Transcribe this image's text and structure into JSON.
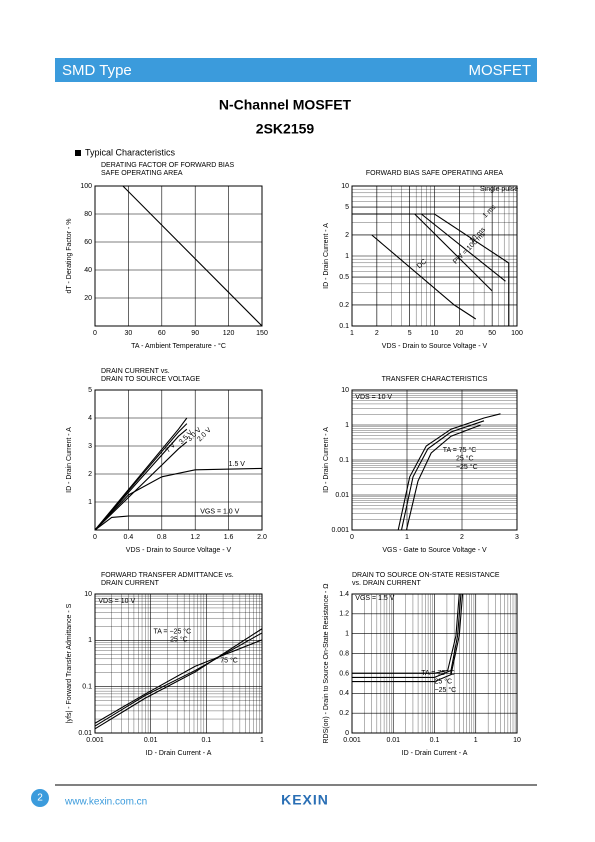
{
  "header": {
    "left": "SMD Type",
    "right": "MOSFET"
  },
  "title": "N-Channel MOSFET",
  "part": "2SK2159",
  "section": "Typical  Characteristics",
  "charts": [
    {
      "title": [
        "DERATING FACTOR OF FORWARD BIAS",
        "SAFE OPERATING AREA"
      ],
      "xlabel": "TA - Ambient Temperature - °C",
      "ylabel": "dT - Derating Factor - %",
      "xlim": [
        0,
        150
      ],
      "ylim": [
        0,
        100
      ],
      "xlog": false,
      "ylog": false,
      "xticks": [
        0,
        30,
        60,
        90,
        120,
        150
      ],
      "yticks": [
        20,
        40,
        60,
        80,
        100
      ],
      "annotations": []
    },
    {
      "title": [
        "FORWARD BIAS SAFE OPERATING AREA"
      ],
      "xlabel": "VDS - Drain to Source Voltage - V",
      "ylabel": "ID - Drain Current - A",
      "xlim": [
        1,
        100
      ],
      "ylim": [
        0.1,
        10
      ],
      "xlog": true,
      "ylog": true,
      "xticks": [
        1,
        2,
        5,
        10,
        20,
        50,
        100
      ],
      "yticks": [
        0.1,
        0.2,
        0.5,
        1,
        2,
        5,
        10
      ],
      "annotations": [
        "Single pulse",
        "1 ms",
        "10 ms",
        "PW = 100 ms",
        "DC"
      ]
    },
    {
      "title": [
        "DRAIN CURRENT vs.",
        "DRAIN TO SOURCE VOLTAGE"
      ],
      "xlabel": "VDS - Drain to Source Voltage - V",
      "ylabel": "ID - Drain Current - A",
      "xlim": [
        0,
        2
      ],
      "ylim": [
        0,
        5
      ],
      "xlog": false,
      "ylog": false,
      "xticks": [
        0,
        0.4,
        0.8,
        1.2,
        1.6,
        {
          "value": 2,
          "label": "2.0"
        }
      ],
      "yticks": [
        1,
        2,
        3,
        4,
        5
      ],
      "annotations": [
        "7 V",
        "3.5 V",
        "3.0 V",
        "2.0 V",
        "1.5 V",
        "VGS = 1.0 V"
      ]
    },
    {
      "title": [
        "TRANSFER CHARACTERISTICS"
      ],
      "xlabel": "VGS - Gate to Source Voltage - V",
      "ylabel": "ID - Drain Current - A",
      "xlim": [
        0,
        3
      ],
      "ylim": [
        0.001,
        10
      ],
      "xlog": false,
      "ylog": true,
      "xticks": [
        0,
        1,
        2,
        3
      ],
      "yticks": [
        0.001,
        0.01,
        0.1,
        1,
        10
      ],
      "annotations": [
        "VDS = 10 V",
        "TA = 75 °C",
        "25 °C",
        "−25 °C"
      ]
    },
    {
      "title": [
        "FORWARD TRANSFER ADMITTANCE vs.",
        "DRAIN CURRENT"
      ],
      "xlabel": "ID - Drain Current - A",
      "ylabel": "|yfs| - Forward Transfer Admittance - S",
      "xlim": [
        0.001,
        1
      ],
      "ylim": [
        0.01,
        10
      ],
      "xlog": true,
      "ylog": true,
      "xticks": [
        0.001,
        0.01,
        0.1,
        1
      ],
      "yticks": [
        0.01,
        0.1,
        1,
        10
      ],
      "annotations": [
        "VDS = 10 V",
        "TA = −25 °C",
        "25 °C",
        "75 °C"
      ]
    },
    {
      "title": [
        "DRAIN TO SOURCE ON-STATE RESISTANCE",
        "vs. DRAIN CURRENT"
      ],
      "xlabel": "ID - Drain Current - A",
      "ylabel": "RDS(on) - Drain to Source On-State Resistance - Ω",
      "xlim": [
        0.001,
        10
      ],
      "ylim": [
        0,
        1.4
      ],
      "xlog": true,
      "ylog": false,
      "xticks": [
        0.001,
        0.01,
        0.1,
        1,
        10
      ],
      "yticks": [
        0,
        0.2,
        0.4,
        0.6,
        0.8,
        1,
        1.2,
        1.4
      ],
      "annotations": [
        "VGS = 1.5 V",
        "TA = 75 °C",
        "25 °C",
        "−25 °C"
      ]
    }
  ],
  "footer": {
    "page": "2",
    "url": "www.kexin.com.cn",
    "brand": "KEXIN"
  }
}
